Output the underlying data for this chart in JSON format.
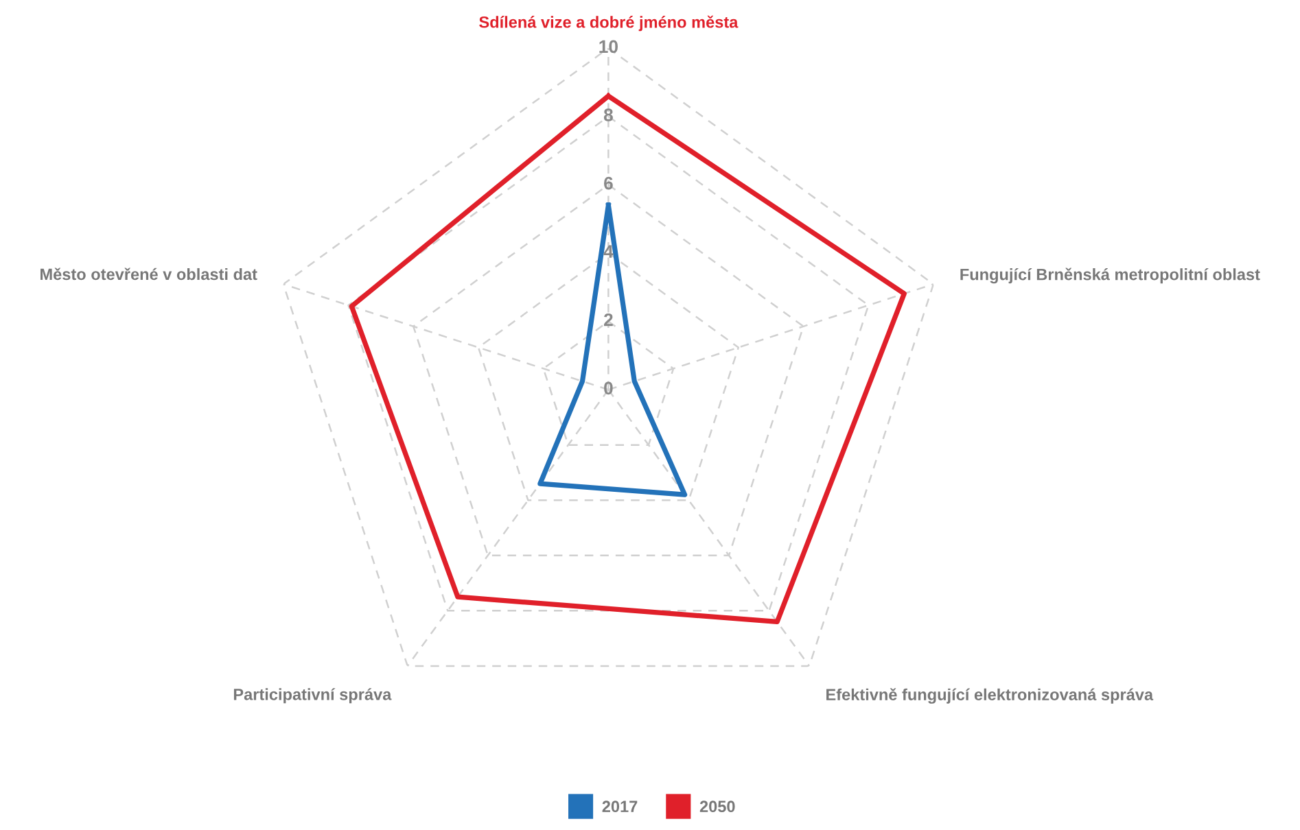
{
  "chart_data": {
    "type": "radar",
    "categories": [
      "Sdílená vize a dobré jméno města",
      "Fungující Brněnská metropolitní oblast",
      "Efektivně fungující elektronizovaná správa",
      "Participativní správa",
      "Město otevřené v oblasti dat"
    ],
    "series": [
      {
        "name": "2017",
        "color": "#2372b9",
        "values": [
          5.4,
          0.8,
          3.8,
          3.4,
          0.8
        ]
      },
      {
        "name": "2050",
        "color": "#e0202a",
        "values": [
          8.6,
          9.1,
          8.4,
          7.5,
          7.9
        ]
      }
    ],
    "ylim": [
      0,
      10
    ],
    "yticks": [
      0,
      2,
      4,
      6,
      8,
      10
    ],
    "grid": true,
    "legend": "bottom",
    "marker": "none",
    "line_style": "solid"
  }
}
